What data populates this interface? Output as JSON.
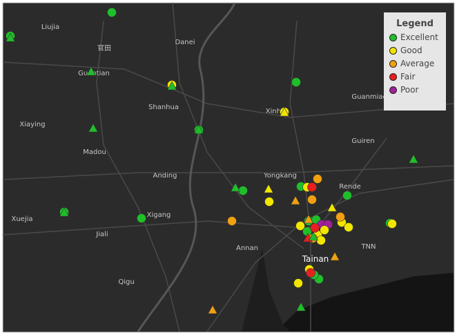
{
  "map": {
    "places": [
      "Liujia",
      "官田",
      "Danei",
      "Guantian",
      "Shanhua",
      "Xinhua",
      "Guanmiao",
      "Xiaying",
      "Madou",
      "Guiren",
      "Anding",
      "Yongkang",
      "Rende",
      "Xuejia",
      "Xigang",
      "Jiali",
      "Annan",
      "Tainan",
      "TNN",
      "Qigu"
    ]
  },
  "legend": {
    "title": "Legend",
    "items": [
      "Excellent",
      "Good",
      "Average",
      "Fair",
      "Poor"
    ]
  }
}
